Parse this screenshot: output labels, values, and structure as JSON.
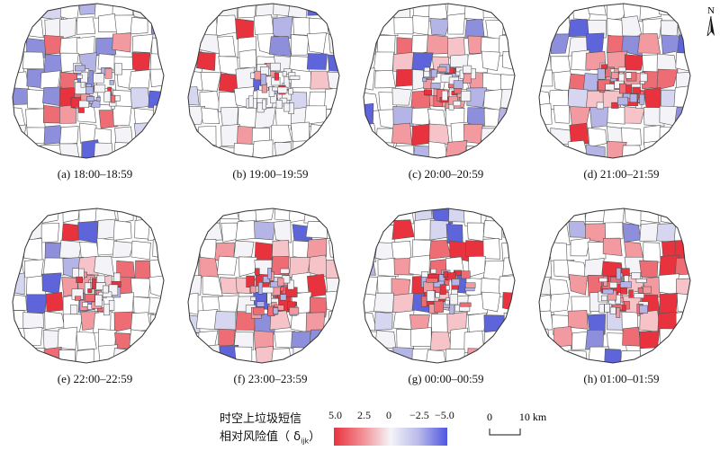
{
  "panels": [
    {
      "label": "(a) 18:00–18:59"
    },
    {
      "label": "(b) 19:00–19:59"
    },
    {
      "label": "(c) 20:00–20:59"
    },
    {
      "label": "(d) 21:00–21:59"
    },
    {
      "label": "(e) 22:00–22:59"
    },
    {
      "label": "(f) 23:00–23:59"
    },
    {
      "label": "(g) 00:00–00:59"
    },
    {
      "label": "(h) 01:00–01:59"
    }
  ],
  "legend": {
    "title_line1": "时空上垃圾短信",
    "title_line2_prefix": "相对风险值（ δ",
    "title_line2_sub": "ijk",
    "title_line2_suffix": "）",
    "ticks": [
      "5.0",
      "2.5",
      "0",
      "−2.5",
      "−5.0"
    ],
    "colors": {
      "high": "#e8333e",
      "mid": "#f4f4f8",
      "low": "#4f56e0"
    }
  },
  "scale_bar": {
    "start_label": "0",
    "end_label": "10 km"
  },
  "north_arrow": {
    "label": "N"
  }
}
